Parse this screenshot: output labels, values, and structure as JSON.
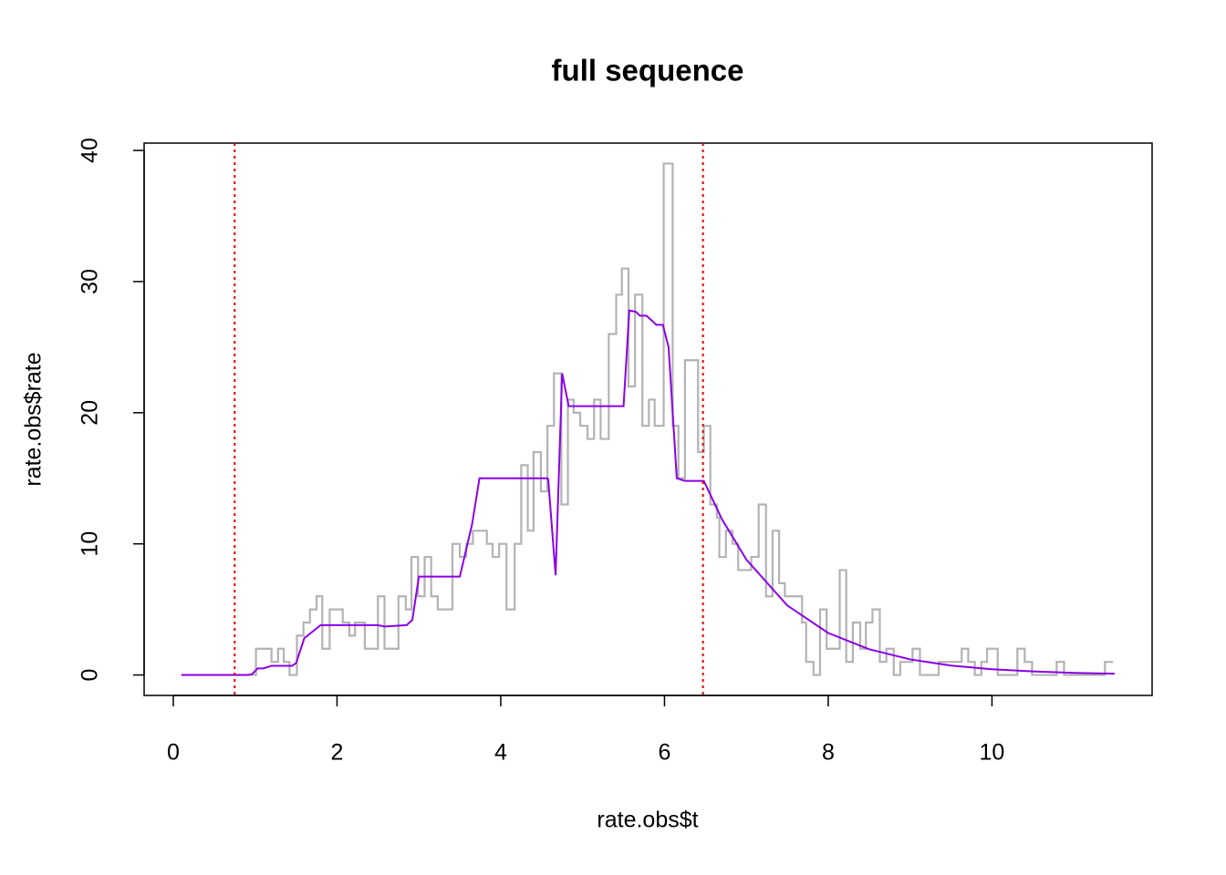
{
  "chart_data": {
    "type": "line",
    "title": "full sequence",
    "x_label": "rate.obs$t",
    "y_label": "rate.obs$rate",
    "xlim": [
      -0.356,
      11.956
    ],
    "ylim": [
      -1.56,
      40.56
    ],
    "xticks": [
      0,
      2,
      4,
      6,
      8,
      10
    ],
    "yticks": [
      0,
      10,
      20,
      30,
      40
    ],
    "series": [
      {
        "color": "#b3b3b3",
        "step": true,
        "x": [
          0.1,
          1.01,
          1.2,
          1.28,
          1.35,
          1.42,
          1.51,
          1.59,
          1.67,
          1.75,
          1.82,
          1.91,
          2.07,
          2.15,
          2.22,
          2.34,
          2.5,
          2.58,
          2.75,
          2.84,
          2.91,
          2.99,
          3.07,
          3.15,
          3.23,
          3.41,
          3.5,
          3.58,
          3.66,
          3.83,
          3.9,
          3.98,
          4.07,
          4.17,
          4.25,
          4.33,
          4.4,
          4.49,
          4.57,
          4.65,
          4.74,
          4.82,
          4.89,
          4.97,
          5.06,
          5.14,
          5.22,
          5.32,
          5.41,
          5.48,
          5.56,
          5.64,
          5.73,
          5.81,
          5.88,
          5.99,
          6.1,
          6.17,
          6.25,
          6.41,
          6.48,
          6.56,
          6.64,
          6.67,
          6.75,
          6.83,
          6.9,
          7.06,
          7.15,
          7.24,
          7.32,
          7.4,
          7.47,
          7.68,
          7.73,
          7.82,
          7.9,
          7.98,
          8.14,
          8.22,
          8.3,
          8.39,
          8.46,
          8.54,
          8.63,
          8.71,
          8.8,
          8.88,
          9.03,
          9.12,
          9.35,
          9.63,
          9.71,
          9.79,
          9.87,
          9.94,
          10.07,
          10.31,
          10.4,
          10.49,
          10.79,
          10.88,
          11.38,
          11.48
        ],
        "values": [
          0,
          2,
          1,
          2,
          1,
          0,
          3,
          4,
          5,
          6,
          2,
          5,
          4,
          3,
          4,
          2,
          6,
          2,
          6,
          5,
          9,
          6,
          9,
          6,
          5,
          10,
          9,
          10,
          11,
          10,
          9,
          10,
          5,
          10,
          16,
          11,
          17,
          14,
          19,
          23,
          13,
          21,
          20,
          19,
          18,
          21,
          18,
          26,
          29,
          31,
          22,
          29,
          19,
          21,
          19,
          39,
          19,
          15,
          24,
          17,
          19,
          13,
          12,
          9,
          11,
          10,
          8,
          9,
          13,
          6,
          11,
          7,
          6,
          4,
          1,
          0,
          5,
          2,
          8,
          1,
          4,
          2,
          4,
          5,
          1,
          2,
          0,
          1,
          2,
          0,
          1,
          2,
          1,
          0,
          1,
          2,
          0,
          2,
          1,
          0,
          1,
          0,
          1,
          1
        ]
      },
      {
        "color": "#8b00e6",
        "x": [
          0.1,
          0.9,
          0.96,
          1.03,
          1.1,
          1.2,
          1.45,
          1.5,
          1.6,
          1.8,
          2.5,
          2.58,
          2.85,
          2.92,
          3.0,
          3.5,
          3.65,
          3.74,
          4.57,
          4.58,
          4.67,
          4.75,
          4.83,
          5.5,
          5.57,
          5.65,
          5.7,
          5.78,
          5.85,
          5.9,
          5.98,
          6.05,
          6.15,
          6.25,
          6.48,
          6.7,
          7.0,
          7.5,
          8.0,
          8.5,
          9.0,
          9.5,
          10.0,
          10.5,
          11.0,
          11.5
        ],
        "values": [
          0,
          0,
          0.05,
          0.5,
          0.5,
          0.7,
          0.7,
          0.9,
          2.8,
          3.8,
          3.8,
          3.7,
          3.8,
          4.2,
          7.5,
          7.5,
          11.5,
          15,
          15,
          14.9,
          7.6,
          23,
          20.5,
          20.5,
          27.8,
          27.7,
          27.4,
          27.4,
          27,
          26.7,
          26.7,
          25,
          15,
          14.8,
          14.8,
          11.9,
          8.8,
          5.3,
          3.2,
          1.96,
          1.19,
          0.72,
          0.44,
          0.27,
          0.16,
          0.1
        ]
      }
    ],
    "vlines": {
      "color": "#e00000",
      "dashed": true,
      "values": [
        0.75,
        6.47
      ]
    }
  }
}
